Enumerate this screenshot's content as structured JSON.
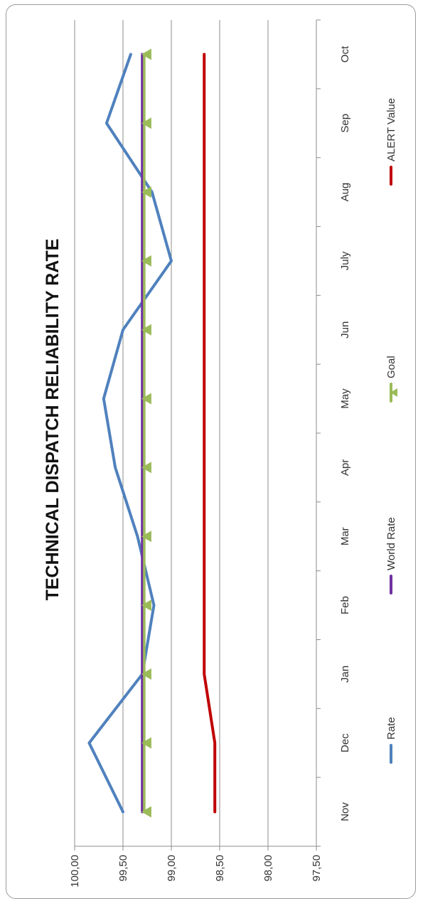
{
  "chart_data": {
    "type": "line",
    "title": "TECHNICAL DISPATCH RELIABILITY RATE",
    "orientation": "rotated-90-ccw",
    "categories": [
      "Nov",
      "Dec",
      "Jan",
      "Feb",
      "Mar",
      "Apr",
      "May",
      "Jun",
      "July",
      "Aug",
      "Sep",
      "Oct"
    ],
    "y_ticks": [
      "100,00",
      "99,50",
      "99,00",
      "98,50",
      "98,00",
      "97,50"
    ],
    "ylim": [
      97.5,
      100.0
    ],
    "grid": true,
    "legend_position": "bottom",
    "series": [
      {
        "name": "Rate",
        "color": "#4f81bd",
        "marker": "none",
        "values": [
          99.5,
          99.85,
          99.3,
          99.18,
          99.35,
          99.58,
          99.7,
          99.5,
          99.0,
          99.2,
          99.67,
          99.42
        ]
      },
      {
        "name": "World Rate",
        "color": "#7030a0",
        "marker": "none",
        "values": [
          99.3,
          99.3,
          99.3,
          99.3,
          99.3,
          99.3,
          99.3,
          99.3,
          99.3,
          99.3,
          99.3,
          99.3
        ]
      },
      {
        "name": "Goal",
        "color": "#9bbb59",
        "marker": "triangle",
        "values": [
          99.28,
          99.28,
          99.28,
          99.28,
          99.28,
          99.28,
          99.28,
          99.28,
          99.28,
          99.28,
          99.28,
          99.28
        ]
      },
      {
        "name": "ALERT Value",
        "color": "#c00000",
        "marker": "none",
        "values": [
          98.55,
          98.55,
          98.66,
          98.66,
          98.66,
          98.66,
          98.66,
          98.66,
          98.66,
          98.66,
          98.66,
          98.66
        ]
      }
    ]
  }
}
